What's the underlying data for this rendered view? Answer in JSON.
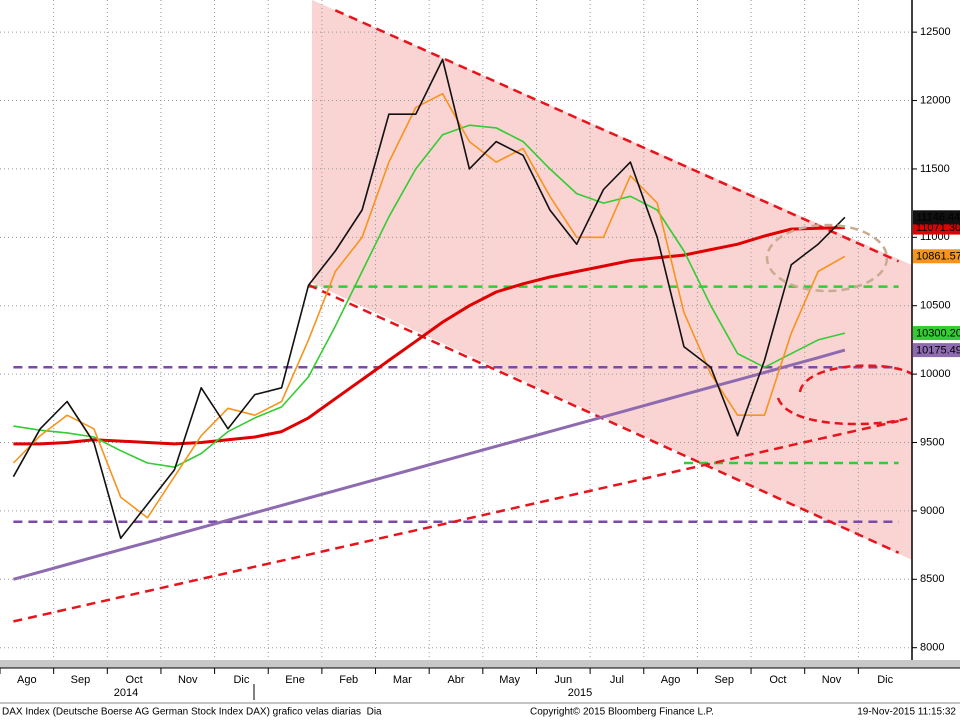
{
  "chart_data": {
    "type": "line",
    "categories": [
      "Ago",
      null,
      "Sep",
      null,
      "Oct",
      null,
      "Nov",
      null,
      "Dic",
      null,
      "Ene",
      null,
      "Feb",
      null,
      "Mar",
      null,
      "Abr",
      null,
      "May",
      null,
      "Jun",
      null,
      "Jul",
      null,
      "Ago",
      null,
      "Sep",
      null,
      "Oct",
      null,
      "Nov",
      null,
      "Dic",
      null
    ],
    "year_labels": [
      "2014",
      "2015"
    ],
    "ylim": [
      7910,
      12735
    ],
    "yticks": [
      8000,
      8500,
      9000,
      9500,
      10000,
      10500,
      11000,
      11500,
      12000,
      12500
    ],
    "grid": true,
    "series": [
      {
        "color": "#7a4aa8",
        "dash": true,
        "width": 2.5,
        "values": [
          10050,
          10050,
          10050,
          10050,
          10050,
          10050,
          10050,
          10050,
          10050,
          10050,
          10050,
          10050,
          10050,
          10050,
          10050,
          10050,
          10050,
          10050,
          10050,
          10050,
          10050,
          10050,
          10050,
          10050,
          10050,
          10050,
          10050,
          10050,
          10050,
          10050,
          10050,
          10050,
          10050,
          10050
        ]
      },
      {
        "color": "#7a4aa8",
        "dash": true,
        "width": 2.5,
        "values": [
          8920,
          8920,
          8920,
          8920,
          8920,
          8920,
          8920,
          8920,
          8920,
          8920,
          8920,
          8920,
          8920,
          8920,
          8920,
          8920,
          8920,
          8920,
          8920,
          8920,
          8920,
          8920,
          8920,
          8920,
          8920,
          8920,
          8920,
          8920,
          8920,
          8920,
          8920,
          8920,
          8920,
          8920
        ]
      },
      {
        "color": "#33cc33",
        "dash": true,
        "width": 2.5,
        "values": [
          null,
          null,
          null,
          null,
          null,
          null,
          null,
          null,
          null,
          null,
          null,
          10640,
          10640,
          10640,
          10640,
          10640,
          10640,
          10640,
          10640,
          10640,
          10640,
          10640,
          10640,
          10640,
          10640,
          10640,
          10640,
          10640,
          10640,
          10640,
          10640,
          10640,
          10640,
          10640
        ]
      },
      {
        "color": "#33cc33",
        "dash": true,
        "width": 2.5,
        "values": [
          null,
          null,
          null,
          null,
          null,
          null,
          null,
          null,
          null,
          null,
          null,
          null,
          null,
          null,
          null,
          null,
          null,
          null,
          null,
          null,
          null,
          null,
          null,
          null,
          null,
          9350,
          9350,
          9350,
          9350,
          9350,
          9350,
          9350,
          9350,
          9350
        ]
      },
      {
        "color": "#e8141b",
        "dash": true,
        "width": 2.5,
        "values": [
          null,
          null,
          null,
          null,
          null,
          null,
          null,
          null,
          null,
          null,
          null,
          null,
          12660,
          12573,
          12485,
          12398,
          12310,
          12223,
          12136,
          12048,
          11961,
          11873,
          11786,
          11699,
          11611,
          11524,
          11436,
          11349,
          11262,
          11174,
          11087,
          10999,
          10912,
          10825
        ]
      },
      {
        "color": "#e8141b",
        "dash": true,
        "width": 2.5,
        "values": [
          null,
          null,
          null,
          null,
          null,
          null,
          null,
          null,
          null,
          null,
          null,
          10652,
          10563,
          10474,
          10385,
          10296,
          10207,
          10118,
          10029,
          9940,
          9851,
          9762,
          9673,
          9584,
          9495,
          9406,
          9317,
          9228,
          9139,
          9050,
          8961,
          8872,
          8783,
          8694
        ]
      },
      {
        "color": "#e8141b",
        "dash": true,
        "width": 2.5,
        "values": [
          8192,
          8236,
          8281,
          8325,
          8370,
          8414,
          8458,
          8503,
          8547,
          8592,
          8636,
          8680,
          8725,
          8769,
          8814,
          8858,
          8902,
          8947,
          8991,
          9036,
          9080,
          9124,
          9169,
          9213,
          9258,
          9302,
          9346,
          9391,
          9435,
          9480,
          9524,
          9568,
          9613,
          9657
        ]
      },
      {
        "color": "#8e6bb0",
        "width": 3,
        "end_label": true,
        "label_text": "#ffffff",
        "values": [
          8500,
          8554,
          8608,
          8662,
          8716,
          8770,
          8824,
          8878,
          8932,
          8986,
          9040,
          9094,
          9148,
          9202,
          9256,
          9310,
          9364,
          9418,
          9472,
          9526,
          9580,
          9634,
          9688,
          9742,
          9796,
          9850,
          9904,
          9958,
          10012,
          10066,
          10120,
          10175.49,
          null,
          null
        ]
      },
      {
        "color": "#e00000",
        "width": 3,
        "end_label": true,
        "label_text": "#ffffff",
        "values": [
          9490,
          9490,
          9500,
          9520,
          9510,
          9500,
          9490,
          9500,
          9520,
          9540,
          9580,
          9680,
          9820,
          9960,
          10100,
          10240,
          10380,
          10500,
          10600,
          10660,
          10710,
          10750,
          10790,
          10830,
          10850,
          10870,
          10910,
          10950,
          11010,
          11060,
          11066,
          11071.3,
          null,
          null
        ],
        "value_labels": [
          null,
          null,
          null,
          null,
          null,
          null,
          null,
          null,
          null,
          null,
          null,
          null,
          null,
          null,
          null,
          null,
          null,
          null,
          null,
          null,
          null,
          null,
          null,
          null,
          null,
          null,
          null,
          null,
          null,
          null,
          null,
          "11071.30",
          null,
          null
        ]
      },
      {
        "color": "#33cc33",
        "width": 1.6,
        "end_label": true,
        "label_text": "#000000",
        "values": [
          9620,
          9590,
          9570,
          9540,
          9440,
          9350,
          9320,
          9420,
          9580,
          9680,
          9760,
          9980,
          10350,
          10750,
          11150,
          11500,
          11750,
          11820,
          11800,
          11700,
          11500,
          11320,
          11250,
          11300,
          11200,
          10900,
          10500,
          10150,
          10050,
          10150,
          10250,
          10300.2,
          null,
          null
        ],
        "value_labels": [
          null,
          null,
          null,
          null,
          null,
          null,
          null,
          null,
          null,
          null,
          null,
          null,
          null,
          null,
          null,
          null,
          null,
          null,
          null,
          null,
          null,
          null,
          null,
          null,
          null,
          null,
          null,
          null,
          null,
          null,
          null,
          "10300.20",
          null,
          null
        ]
      },
      {
        "color": "#f7941d",
        "width": 1.6,
        "end_label": true,
        "label_text": "#000000",
        "values": [
          9350,
          9550,
          9700,
          9600,
          9100,
          8950,
          9250,
          9550,
          9750,
          9700,
          9800,
          10250,
          10750,
          11000,
          11550,
          11950,
          12050,
          11700,
          11550,
          11650,
          11300,
          11000,
          11000,
          11450,
          11250,
          10450,
          10000,
          9700,
          9700,
          10300,
          10750,
          10861.57,
          null,
          null
        ]
      },
      {
        "color": "#111111",
        "width": 1.6,
        "end_label": true,
        "label_text": "#ffffff",
        "values": [
          9250,
          9600,
          9800,
          9500,
          8800,
          9050,
          9300,
          9900,
          9600,
          9850,
          9900,
          10650,
          10900,
          11200,
          11900,
          11900,
          12300,
          11500,
          11700,
          11600,
          11200,
          10950,
          11350,
          11550,
          11000,
          10200,
          10050,
          9550,
          10100,
          10800,
          10950,
          11146.44,
          null,
          null
        ]
      }
    ]
  },
  "footer": {
    "source": "DAX Index (Deutsche Boerse AG German Stock Index DAX) grafico velas diarias  Dia",
    "copyright": "Copyright© 2015 Bloomberg Finance L.P.",
    "timestamp": "19-Nov-2015 11:15:32"
  }
}
